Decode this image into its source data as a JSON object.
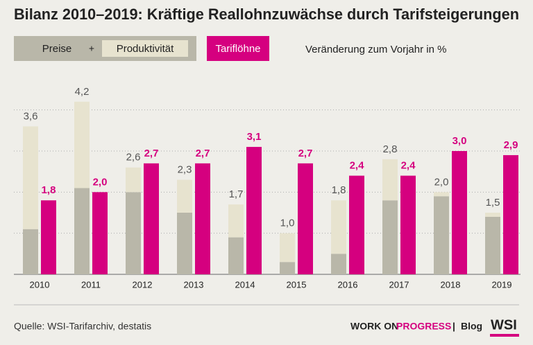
{
  "chart_data": {
    "type": "stacked_grouped_bar",
    "title": "Bilanz 2010–2019: Kräftige Reallohnzuwächse durch Tarifsteigerungen",
    "subtitle": "Veränderung zum Vorjahr in %",
    "legend_joiner": "+",
    "categories": [
      "2010",
      "2011",
      "2012",
      "2013",
      "2014",
      "2015",
      "2016",
      "2017",
      "2018",
      "2019"
    ],
    "series": [
      {
        "name": "Preise",
        "color": "#b9b7a9",
        "stack": "a",
        "values": [
          1.1,
          2.1,
          2.0,
          1.5,
          0.9,
          0.3,
          0.5,
          1.8,
          1.9,
          1.4
        ]
      },
      {
        "name": "Produktivität",
        "color": "#e7e3cf",
        "stack": "a",
        "values": [
          2.5,
          2.1,
          0.6,
          0.8,
          0.8,
          0.7,
          1.3,
          1.0,
          0.1,
          0.1
        ]
      },
      {
        "name": "Tariflöhne",
        "color": "#d5007f",
        "stack": "b",
        "values": [
          1.8,
          2.0,
          2.7,
          2.7,
          3.1,
          2.7,
          2.4,
          2.4,
          3.0,
          2.9
        ],
        "value_labels": [
          "1,8",
          "2,0",
          "2,7",
          "2,7",
          "3,1",
          "2,7",
          "2,4",
          "2,4",
          "3,0",
          "2,9"
        ]
      }
    ],
    "totals": {
      "values": [
        3.6,
        4.2,
        2.6,
        2.3,
        1.7,
        1.0,
        1.8,
        2.8,
        2.0,
        1.5
      ],
      "value_labels": [
        "3,6",
        "4,2",
        "2,6",
        "2,3",
        "1,7",
        "1,0",
        "1,8",
        "2,8",
        "2,0",
        "1,5"
      ]
    },
    "ylim": [
      0,
      4.5
    ],
    "gridlines": [
      1,
      2,
      3,
      4
    ]
  },
  "footer": {
    "source": "Quelle: WSI-Tarifarchiv, destatis",
    "brand_1": "WORK ON",
    "brand_2": "PROGRESS",
    "separator": "|",
    "blog": "Blog",
    "logo": "WSI"
  }
}
